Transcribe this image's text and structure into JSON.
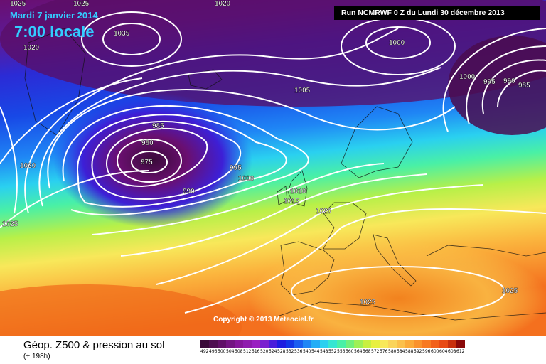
{
  "header": {
    "date_label": "Mardi 7 janvier 2014",
    "time_label": "7:00 locale",
    "run_info": "Run NCMRWF 0 Z du Lundi 30 décembre 2013"
  },
  "map": {
    "copyright": "Copyright © 2013 Meteociel.fr",
    "isobar_labels": [
      "1025",
      "1020",
      "1025",
      "1020",
      "1035",
      "1000",
      "1000",
      "995",
      "990",
      "985",
      "1005",
      "985",
      "980",
      "975",
      "990",
      "995",
      "1000",
      "1010",
      "1015",
      "1020",
      "1020",
      "1025",
      "1025",
      "1025"
    ],
    "colors": {
      "isobar": "#ffffff",
      "highlight_text": "#33ccff",
      "run_box_bg": "#000000"
    }
  },
  "footer": {
    "title": "Géop. Z500 & pression au sol",
    "subtitle": "(+ 198h)"
  },
  "legend": {
    "labels": [
      "492",
      "496",
      "500",
      "504",
      "508",
      "512",
      "516",
      "520",
      "524",
      "528",
      "532",
      "536",
      "540",
      "544",
      "548",
      "552",
      "556",
      "560",
      "564",
      "568",
      "572",
      "576",
      "580",
      "584",
      "588",
      "592",
      "596",
      "600",
      "604",
      "608",
      "612"
    ],
    "colors": [
      "#3a0a3a",
      "#4d0d50",
      "#600f68",
      "#731482",
      "#85169b",
      "#8f1bae",
      "#9a20c1",
      "#7a1fcf",
      "#4a1ddb",
      "#1e1de0",
      "#1236e6",
      "#1a5ef0",
      "#1f86f5",
      "#24adf6",
      "#2ad0f0",
      "#35e6d2",
      "#49f0a6",
      "#71f07a",
      "#9ef056",
      "#c8f040",
      "#e8f040",
      "#f8e85a",
      "#fad45a",
      "#fbc04a",
      "#fbaa38",
      "#fa922c",
      "#f87a22",
      "#f2601a",
      "#e84a14",
      "#c8300e",
      "#8a0a0a"
    ]
  }
}
